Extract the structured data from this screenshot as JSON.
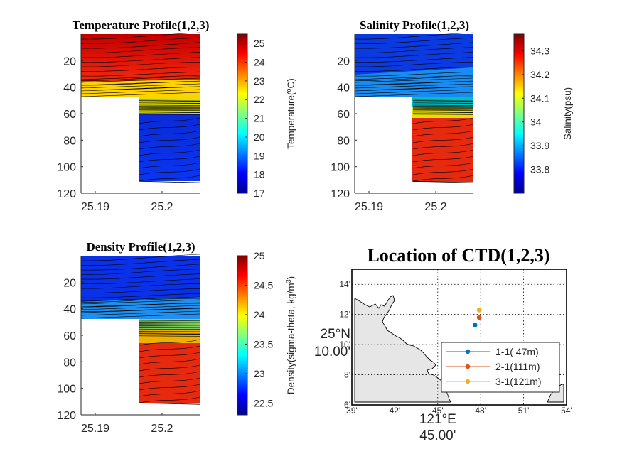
{
  "chart_data": [
    {
      "id": "temperature",
      "type": "contour",
      "title": "Temperature Profile(1,2,3)",
      "x_ticks": [
        "25.19",
        "25.2"
      ],
      "y_ticks": [
        "20",
        "40",
        "60",
        "80",
        "100",
        "120"
      ],
      "y_reversed": true,
      "ylim": [
        0,
        120
      ],
      "colorbar": {
        "label_main": "Temperature(",
        "label_sup": "o",
        "label_tail": "C)",
        "range": [
          17,
          25.5
        ],
        "ticks": [
          "17",
          "18",
          "19",
          "20",
          "21",
          "22",
          "23",
          "24",
          "25"
        ]
      }
    },
    {
      "id": "salinity",
      "type": "contour",
      "title": "Salinity Profile(1,2,3)",
      "x_ticks": [
        "25.19",
        "25.2"
      ],
      "y_ticks": [
        "20",
        "40",
        "60",
        "80",
        "100",
        "120"
      ],
      "y_reversed": true,
      "ylim": [
        0,
        120
      ],
      "colorbar": {
        "label_main": "Salinity(psu)",
        "range": [
          33.7,
          34.37
        ],
        "ticks": [
          "33.8",
          "33.9",
          "34",
          "34.1",
          "34.2",
          "34.3"
        ]
      }
    },
    {
      "id": "density",
      "type": "contour",
      "title": "Density Profile(1,2,3)",
      "x_ticks": [
        "25.19",
        "25.2"
      ],
      "y_ticks": [
        "20",
        "40",
        "60",
        "80",
        "100",
        "120"
      ],
      "y_reversed": true,
      "ylim": [
        0,
        120
      ],
      "colorbar": {
        "label_main": "Density(sigma-theta, kg/m",
        "label_sup": "3",
        "label_tail": ")",
        "range": [
          22.3,
          25
        ],
        "ticks": [
          "22.5",
          "23",
          "23.5",
          "24",
          "24.5",
          "25"
        ]
      }
    },
    {
      "id": "location",
      "type": "map",
      "title": "Location of CTD(1,2,3)",
      "x_ticks": [
        "39'",
        "42'",
        "45'",
        "48'",
        "51'",
        "54'"
      ],
      "y_ticks": [
        "6'",
        "8'",
        "10'",
        "12'",
        "14'"
      ],
      "x_center_label": "121°E",
      "x_center_sub": "45.00'",
      "y_center_label": "25°N",
      "y_center_sub": "10.00'",
      "stations": [
        {
          "name": "1-1( 47m)",
          "lon_min": 47.6,
          "lat_min": 11.3,
          "color": "#0072BD"
        },
        {
          "name": "2-1(111m)",
          "lon_min": 47.9,
          "lat_min": 11.8,
          "color": "#D95319"
        },
        {
          "name": "3-1(121m)",
          "lon_min": 47.9,
          "lat_min": 12.3,
          "color": "#EDB120"
        }
      ]
    }
  ]
}
